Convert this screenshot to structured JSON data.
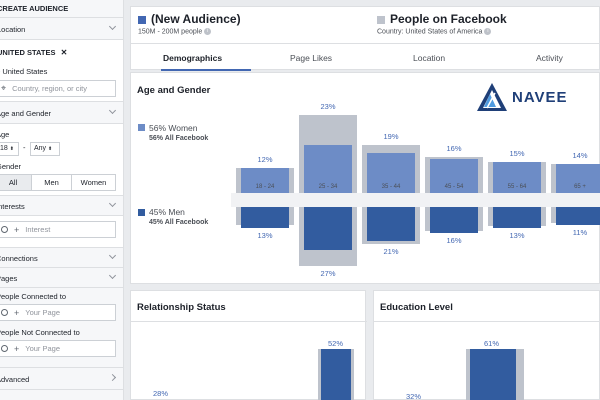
{
  "sidebar": {
    "create_audience": "CREATE AUDIENCE",
    "location_label": "Location",
    "location_token": "UNITED STATES",
    "location_token_close": "✕",
    "location_option": "United States",
    "location_placeholder": "Country, region, or city",
    "age_gender_label": "Age and Gender",
    "age_label": "Age",
    "age_from": "18",
    "age_to": "Any",
    "gender_label": "Gender",
    "gender_options": [
      "All",
      "Men",
      "Women"
    ],
    "interests_label": "Interests",
    "interest_placeholder": "Interest",
    "connections_label": "Connections",
    "pages_label": "Pages",
    "connected_to_label": "People Connected to",
    "connected_to_placeholder": "Your Page",
    "not_connected_to_label": "People Not Connected to",
    "not_connected_to_placeholder": "Your Page",
    "advanced_label": "Advanced"
  },
  "header": {
    "audience_title": "(New Audience)",
    "audience_size": "150M - 200M people",
    "compare_title": "People on Facebook",
    "compare_country": "Country: United States of America",
    "tabs": [
      "Demographics",
      "Page Likes",
      "Location",
      "Activity"
    ]
  },
  "age_gender": {
    "title": "Age and Gender",
    "women_label": "56% Women",
    "women_sub": "56% All Facebook",
    "men_label": "45% Men",
    "men_sub": "45% All Facebook"
  },
  "logo": {
    "text": "NAVEE"
  },
  "relationship": {
    "title": "Relationship Status",
    "values": [
      "28%",
      "52%"
    ]
  },
  "education": {
    "title": "Education Level",
    "values": [
      "32%",
      "61%"
    ]
  },
  "colors": {
    "accent": "#4267b2",
    "women": "#6d8cc6",
    "men": "#325c9f",
    "compare": "#bec3cc"
  },
  "chart_data": {
    "type": "bar",
    "categories": [
      "18 - 24",
      "25 - 34",
      "35 - 44",
      "45 - 54",
      "55 - 64",
      "65 +"
    ],
    "series": [
      {
        "name": "Women",
        "values": [
          12,
          23,
          19,
          16,
          15,
          14
        ]
      },
      {
        "name": "Men",
        "values": [
          13,
          27,
          21,
          16,
          13,
          11
        ]
      }
    ],
    "unit": "%"
  }
}
